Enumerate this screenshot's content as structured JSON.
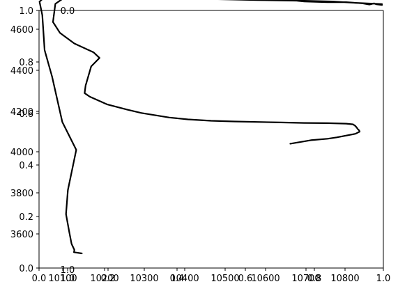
{
  "chart_data": [
    {
      "type": "line",
      "x_tick_labels": [
        "10100",
        "10200",
        "10300",
        "10400",
        "10500",
        "10600",
        "10700",
        "10800"
      ],
      "y_tick_labels": [
        "3600",
        "3800",
        "4000",
        "4200",
        "4400",
        "4600"
      ],
      "xlim": [
        10080,
        10820
      ],
      "ylim": [
        3530,
        4620
      ],
      "grid": false,
      "series": [
        {
          "color": "#000000",
          "x": [
            10172,
            10155,
            10156,
            10150,
            10145,
            10138,
            10142,
            10160,
            10130,
            10108,
            10092,
            10087,
            10081,
            10092,
            10108,
            10129,
            10170,
            10200,
            10250,
            10300,
            10350,
            10400,
            10450,
            10500,
            10550,
            10600,
            10650,
            10700,
            10740,
            10775,
            10790,
            10800,
            10805,
            10817,
            10817,
            10760,
            10710,
            10650,
            10600,
            10550,
            10500,
            10450,
            10400,
            10350,
            10300,
            10250,
            10200,
            10158,
            10135,
            10115,
            10110,
            10125,
            10156,
            10197,
            10210,
            10192,
            10180,
            10178,
            10189,
            10227,
            10270,
            10300,
            10360,
            10400,
            10450,
            10500,
            10550,
            10600,
            10650,
            10700,
            10740,
            10755,
            10760,
            10763,
            10765,
            10768,
            10769,
            10760,
            10720,
            10700,
            10664,
            10620
          ],
          "y": [
            3592,
            3597,
            3607,
            3632,
            3682,
            3758,
            3860,
            4030,
            4148,
            4340,
            4452,
            4600,
            4657,
            4677,
            4673,
            4670,
            4675,
            4680,
            4683,
            4680,
            4680,
            4678,
            4677,
            4676,
            4674,
            4668,
            4658,
            4655,
            4655,
            4650,
            4645,
            4650,
            4646,
            4643,
            4647,
            4652,
            4658,
            4661,
            4662,
            4664,
            4666,
            4668,
            4670,
            4671,
            4672,
            4674,
            4678,
            4678,
            4675,
            4648,
            4571,
            4525,
            4480,
            4443,
            4419,
            4383,
            4302,
            4270,
            4255,
            4222,
            4200,
            4186,
            4167,
            4159,
            4153,
            4150,
            4148,
            4146,
            4144,
            4143,
            4141,
            4138,
            4131,
            4124,
            4118,
            4112,
            4107,
            4098,
            4083,
            4077,
            4071,
            4056
          ]
        }
      ]
    },
    {
      "type": "line",
      "x_tick_labels": [
        "0.0",
        "0.2",
        "0.4",
        "0.6",
        "0.8",
        "1.0"
      ],
      "y_tick_labels": [
        "0.0",
        "0.2",
        "0.4",
        "0.6",
        "0.8",
        "1.0"
      ],
      "xlim": [
        0.0,
        1.0
      ],
      "ylim": [
        0.0,
        1.0
      ],
      "grid": false,
      "series": []
    },
    {
      "type": "line",
      "x_tick_labels": [
        "0.0",
        "1.0"
      ],
      "y_tick_labels": [
        "0.0",
        "1.0"
      ],
      "xlim": [
        0.0,
        1.0
      ],
      "ylim": [
        0.0,
        1.0
      ],
      "grid": false,
      "series": []
    }
  ]
}
